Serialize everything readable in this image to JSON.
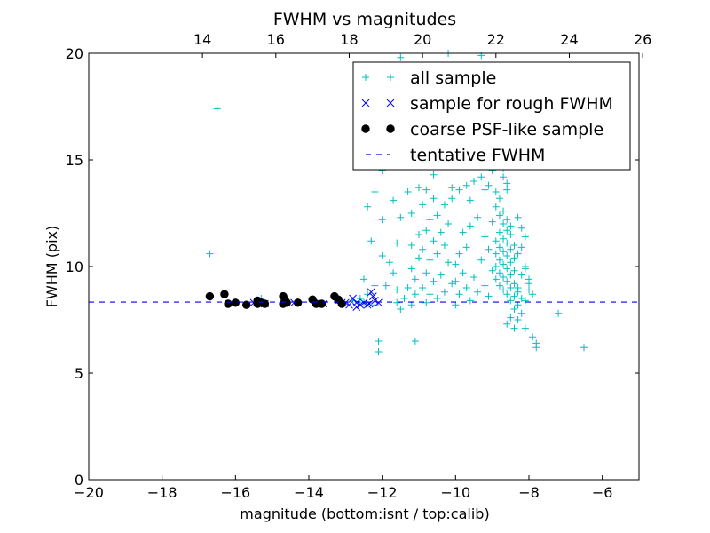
{
  "chart_data": {
    "type": "scatter",
    "title": "FWHM vs magnitudes",
    "xlabel": "magnitude (bottom:isnt / top:calib)",
    "ylabel": "FWHM (pix)",
    "xlim": [
      -20,
      -5
    ],
    "ylim": [
      0,
      20
    ],
    "x_ticks": [
      -20,
      -18,
      -16,
      -14,
      -12,
      -10,
      -8,
      -6
    ],
    "y_ticks": [
      0,
      5,
      10,
      15,
      20
    ],
    "top_axis": {
      "offset": 30.9,
      "ticks": [
        14,
        16,
        18,
        20,
        22,
        24,
        26
      ]
    },
    "legend_position": "upper right",
    "grid": false,
    "tentative_fwhm": 8.33,
    "series": [
      {
        "name": "all sample",
        "marker": "plus",
        "color": "#00bfbf",
        "points": [
          [
            -16.5,
            17.4
          ],
          [
            -16.7,
            10.6
          ],
          [
            -15.3,
            8.5
          ],
          [
            -12.8,
            8.4
          ],
          [
            -12.5,
            8.3
          ],
          [
            -12.2,
            8.2
          ],
          [
            -12.1,
            6.5
          ],
          [
            -12.1,
            6.0
          ],
          [
            -12.0,
            10.5
          ],
          [
            -11.6,
            8.3
          ],
          [
            -11.1,
            6.5
          ],
          [
            -7.2,
            7.8
          ],
          [
            -6.5,
            6.2
          ],
          [
            -7.8,
            6.4
          ],
          [
            -7.9,
            6.7
          ],
          [
            -8.1,
            7.1
          ],
          [
            -7.8,
            6.2
          ],
          [
            -11.5,
            19.8
          ],
          [
            -10.2,
            20.0
          ],
          [
            -9.3,
            19.9
          ],
          [
            -11.8,
            15.9
          ],
          [
            -12.0,
            14.5
          ],
          [
            -12.2,
            13.5
          ],
          [
            -12.4,
            12.8
          ],
          [
            -12.0,
            12.2
          ],
          [
            -11.7,
            13.1
          ],
          [
            -11.3,
            13.5
          ],
          [
            -11.5,
            12.3
          ],
          [
            -11.2,
            12.5
          ],
          [
            -11.0,
            13.7
          ],
          [
            -10.8,
            13.6
          ],
          [
            -10.9,
            12.9
          ],
          [
            -10.5,
            12.4
          ],
          [
            -10.6,
            13.2
          ],
          [
            -10.3,
            12.9
          ],
          [
            -10.1,
            13.7
          ],
          [
            -10.1,
            13.2
          ],
          [
            -9.9,
            13.6
          ],
          [
            -9.7,
            13.8
          ],
          [
            -9.5,
            14.0
          ],
          [
            -9.6,
            13.1
          ],
          [
            -9.3,
            14.2
          ],
          [
            -9.2,
            13.6
          ],
          [
            -9.0,
            14.5
          ],
          [
            -9.1,
            13.8
          ],
          [
            -8.9,
            13.5
          ],
          [
            -8.7,
            14.2
          ],
          [
            -8.6,
            13.9
          ],
          [
            -8.6,
            13.6
          ],
          [
            -8.8,
            13.2
          ],
          [
            -8.9,
            12.8
          ],
          [
            -8.7,
            12.6
          ],
          [
            -8.8,
            12.4
          ],
          [
            -8.6,
            12.2
          ],
          [
            -8.7,
            12.0
          ],
          [
            -8.5,
            11.9
          ],
          [
            -8.6,
            11.7
          ],
          [
            -8.8,
            11.6
          ],
          [
            -8.5,
            11.5
          ],
          [
            -8.7,
            11.3
          ],
          [
            -8.9,
            11.2
          ],
          [
            -8.6,
            11.1
          ],
          [
            -8.4,
            11.0
          ],
          [
            -8.8,
            10.9
          ],
          [
            -8.5,
            10.8
          ],
          [
            -8.7,
            10.7
          ],
          [
            -8.9,
            10.6
          ],
          [
            -8.6,
            10.5
          ],
          [
            -8.4,
            10.4
          ],
          [
            -8.8,
            10.3
          ],
          [
            -8.5,
            10.2
          ],
          [
            -8.7,
            10.1
          ],
          [
            -8.9,
            10.0
          ],
          [
            -8.6,
            9.9
          ],
          [
            -8.4,
            9.8
          ],
          [
            -8.8,
            9.7
          ],
          [
            -8.5,
            9.6
          ],
          [
            -8.7,
            9.5
          ],
          [
            -8.9,
            9.4
          ],
          [
            -8.6,
            9.3
          ],
          [
            -8.4,
            9.2
          ],
          [
            -8.8,
            9.1
          ],
          [
            -8.5,
            9.0
          ],
          [
            -8.7,
            8.9
          ],
          [
            -8.3,
            8.8
          ],
          [
            -8.6,
            8.7
          ],
          [
            -8.4,
            8.6
          ],
          [
            -8.2,
            8.5
          ],
          [
            -8.5,
            8.4
          ],
          [
            -8.3,
            8.2
          ],
          [
            -8.4,
            8.0
          ],
          [
            -8.2,
            7.8
          ],
          [
            -8.5,
            7.6
          ],
          [
            -8.3,
            7.5
          ],
          [
            -8.6,
            7.3
          ],
          [
            -8.4,
            7.1
          ],
          [
            -8.0,
            8.9
          ],
          [
            -7.9,
            8.7
          ],
          [
            -8.0,
            9.4
          ],
          [
            -8.1,
            9.9
          ],
          [
            -9.0,
            12.1
          ],
          [
            -9.2,
            11.4
          ],
          [
            -9.4,
            12.3
          ],
          [
            -9.1,
            10.8
          ],
          [
            -9.3,
            10.3
          ],
          [
            -9.0,
            9.8
          ],
          [
            -9.5,
            9.5
          ],
          [
            -9.2,
            9.1
          ],
          [
            -9.4,
            8.8
          ],
          [
            -9.1,
            8.6
          ],
          [
            -9.6,
            11.9
          ],
          [
            -9.8,
            11.6
          ],
          [
            -9.7,
            10.9
          ],
          [
            -9.9,
            10.6
          ],
          [
            -10.0,
            10.1
          ],
          [
            -9.8,
            9.7
          ],
          [
            -10.0,
            9.3
          ],
          [
            -9.7,
            9.0
          ],
          [
            -9.9,
            8.7
          ],
          [
            -9.6,
            8.4
          ],
          [
            -10.2,
            12.0
          ],
          [
            -10.4,
            11.6
          ],
          [
            -10.3,
            11.0
          ],
          [
            -10.5,
            10.6
          ],
          [
            -10.2,
            10.2
          ],
          [
            -10.4,
            9.6
          ],
          [
            -10.1,
            9.2
          ],
          [
            -10.3,
            8.8
          ],
          [
            -10.5,
            8.5
          ],
          [
            -10.0,
            8.2
          ],
          [
            -10.7,
            12.2
          ],
          [
            -10.8,
            11.7
          ],
          [
            -10.6,
            11.2
          ],
          [
            -10.9,
            10.8
          ],
          [
            -10.7,
            10.3
          ],
          [
            -10.8,
            9.7
          ],
          [
            -10.6,
            9.3
          ],
          [
            -10.9,
            9.0
          ],
          [
            -10.7,
            8.7
          ],
          [
            -10.8,
            8.3
          ],
          [
            -11.0,
            11.5
          ],
          [
            -11.2,
            11.0
          ],
          [
            -11.0,
            10.4
          ],
          [
            -11.2,
            9.9
          ],
          [
            -11.1,
            9.4
          ],
          [
            -11.3,
            9.0
          ],
          [
            -11.1,
            8.7
          ],
          [
            -11.4,
            8.5
          ],
          [
            -11.2,
            8.2
          ],
          [
            -11.5,
            8.0
          ],
          [
            -11.6,
            11.1
          ],
          [
            -11.8,
            10.2
          ],
          [
            -11.7,
            9.7
          ],
          [
            -11.9,
            9.1
          ],
          [
            -11.6,
            8.9
          ],
          [
            -12.3,
            11.2
          ],
          [
            -12.5,
            9.4
          ],
          [
            -12.2,
            9.1
          ],
          [
            -12.4,
            8.7
          ],
          [
            -12.6,
            8.5
          ],
          [
            -8.3,
            12.3
          ],
          [
            -8.2,
            11.8
          ],
          [
            -8.1,
            11.4
          ],
          [
            -8.2,
            10.9
          ],
          [
            -8.3,
            10.6
          ],
          [
            -8.1,
            10.0
          ],
          [
            -8.2,
            9.6
          ],
          [
            -8.0,
            9.2
          ],
          [
            -8.3,
            9.0
          ],
          [
            -8.1,
            8.4
          ],
          [
            -8.9,
            14.9
          ],
          [
            -9.1,
            15.1
          ],
          [
            -8.7,
            14.6
          ],
          [
            -9.4,
            14.8
          ],
          [
            -10.6,
            14.3
          ]
        ]
      },
      {
        "name": "sample for rough FWHM",
        "marker": "x",
        "color": "#0000ff",
        "points": [
          [
            -13.2,
            8.4
          ],
          [
            -13.0,
            8.3
          ],
          [
            -12.9,
            8.2
          ],
          [
            -12.8,
            8.5
          ],
          [
            -12.7,
            8.3
          ],
          [
            -12.6,
            8.2
          ],
          [
            -12.5,
            8.3
          ],
          [
            -12.4,
            8.2
          ],
          [
            -12.3,
            8.8
          ],
          [
            -12.25,
            8.6
          ],
          [
            -12.2,
            8.4
          ],
          [
            -12.1,
            8.3
          ],
          [
            -12.7,
            8.1
          ],
          [
            -13.1,
            8.3
          ],
          [
            -12.35,
            8.25
          ],
          [
            -15.5,
            8.3
          ],
          [
            -15.2,
            8.25
          ],
          [
            -14.4,
            8.3
          ],
          [
            -13.6,
            8.25
          ]
        ]
      },
      {
        "name": "coarse PSF-like sample",
        "marker": "o",
        "color": "#000000",
        "points": [
          [
            -16.7,
            8.6
          ],
          [
            -16.3,
            8.7
          ],
          [
            -16.2,
            8.25
          ],
          [
            -16.0,
            8.3
          ],
          [
            -15.7,
            8.2
          ],
          [
            -15.4,
            8.4
          ],
          [
            -15.3,
            8.3
          ],
          [
            -15.2,
            8.25
          ],
          [
            -14.7,
            8.6
          ],
          [
            -14.65,
            8.45
          ],
          [
            -14.6,
            8.3
          ],
          [
            -14.3,
            8.3
          ],
          [
            -13.9,
            8.45
          ],
          [
            -13.8,
            8.25
          ],
          [
            -13.65,
            8.25
          ],
          [
            -13.3,
            8.6
          ],
          [
            -13.2,
            8.45
          ],
          [
            -13.1,
            8.25
          ],
          [
            -14.7,
            8.25
          ],
          [
            -15.4,
            8.25
          ]
        ]
      },
      {
        "name": "tentative FWHM",
        "marker": "dashed-line",
        "color": "#0000ff",
        "y": 8.33
      }
    ]
  }
}
